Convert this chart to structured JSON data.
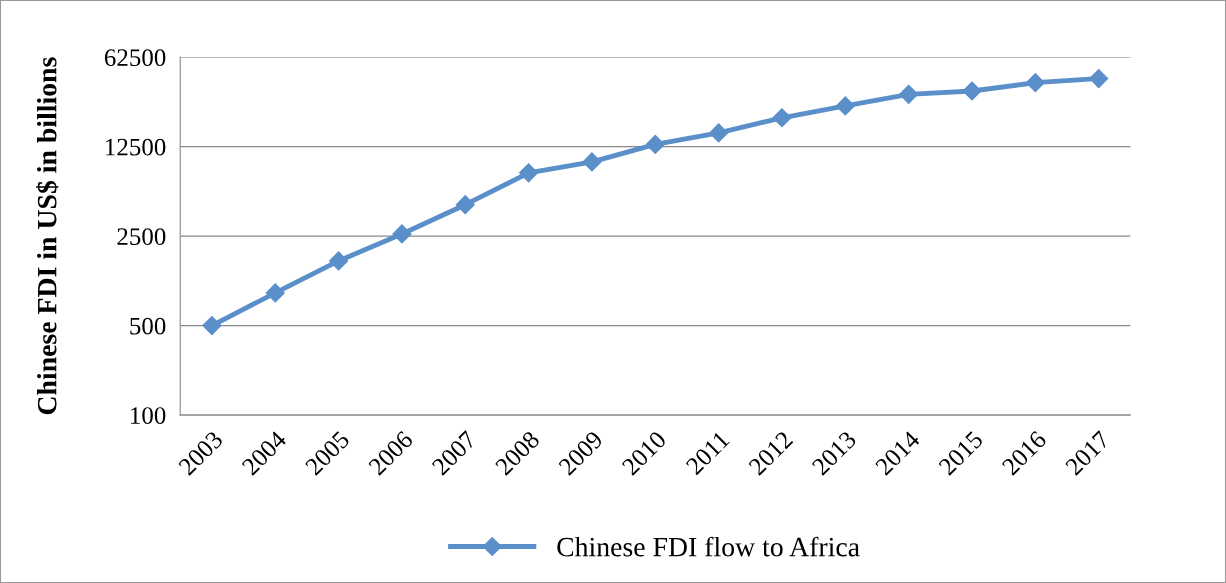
{
  "chart_data": {
    "type": "line",
    "ylabel": "Chinese FDI in US$ in billions",
    "categories": [
      "2003",
      "2004",
      "2005",
      "2006",
      "2007",
      "2008",
      "2009",
      "2010",
      "2011",
      "2012",
      "2013",
      "2014",
      "2015",
      "2016",
      "2017"
    ],
    "series": [
      {
        "name": "Chinese FDI flow to Africa",
        "color": "#5b8fc9",
        "values": [
          500,
          900,
          1600,
          2600,
          4400,
          7800,
          9500,
          13000,
          16000,
          21000,
          26000,
          32000,
          34000,
          39500,
          42500
        ]
      }
    ],
    "log": "y",
    "ylim": [
      100,
      62500
    ],
    "yticks": [
      100,
      500,
      2500,
      12500,
      62500
    ],
    "grid": "y",
    "legend": "bottom",
    "marker": "diamond",
    "line_style": "solid"
  }
}
